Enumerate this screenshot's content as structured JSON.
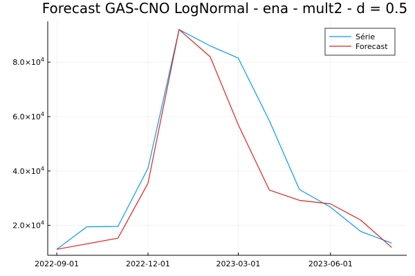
{
  "chart_data": {
    "type": "line",
    "title": "Forecast GAS-CNO LogNormal - ena - mult2 - d = 0.5",
    "xlabel": "",
    "ylabel": "",
    "x": [
      "2022-09-01",
      "2022-10-01",
      "2022-11-01",
      "2022-12-01",
      "2023-01-01",
      "2023-02-01",
      "2023-03-01",
      "2023-04-01",
      "2023-05-01",
      "2023-06-01",
      "2023-07-01",
      "2023-08-01"
    ],
    "series": [
      {
        "name": "Série",
        "color": "#009AFA",
        "values": [
          11200,
          19500,
          19600,
          41000,
          92000,
          86000,
          81500,
          58500,
          33200,
          26700,
          17800,
          13500
        ]
      },
      {
        "name": "Forecast",
        "color": "#E0201B",
        "values": [
          11200,
          13200,
          15300,
          35500,
          92000,
          82000,
          57000,
          33000,
          29200,
          27900,
          22000,
          11900
        ]
      }
    ],
    "xlim": [
      "2022-08-23",
      "2023-08-16"
    ],
    "ylim": [
      9000,
      95000
    ],
    "x_ticks": [
      "2022-09-01",
      "2022-12-01",
      "2023-03-01",
      "2023-06-01"
    ],
    "y_ticks": [
      {
        "value": 20000,
        "mantissa": "2.0",
        "base": "×10",
        "exponent": "4"
      },
      {
        "value": 40000,
        "mantissa": "4.0",
        "base": "×10",
        "exponent": "4"
      },
      {
        "value": 60000,
        "mantissa": "6.0",
        "base": "×10",
        "exponent": "4"
      },
      {
        "value": 80000,
        "mantissa": "8.0",
        "base": "×10",
        "exponent": "4"
      }
    ],
    "grid": true,
    "legend_position": "top-right"
  }
}
